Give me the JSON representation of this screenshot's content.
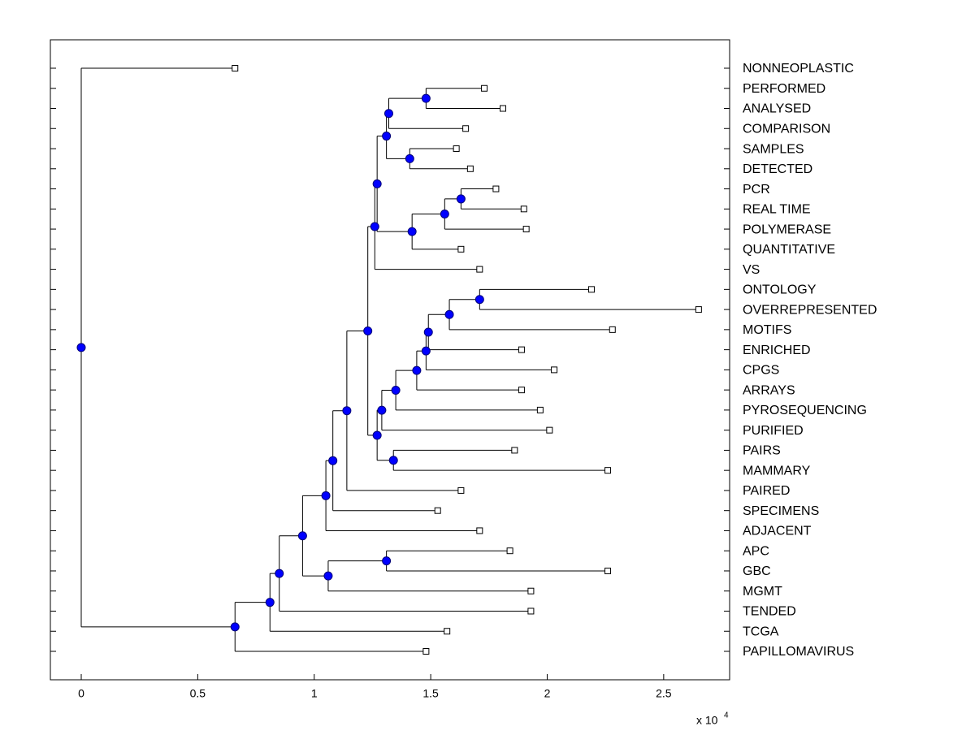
{
  "chart_data": {
    "type": "dendrogram",
    "labels": [
      "NONNEOPLASTIC",
      "PERFORMED",
      "ANALYSED",
      "COMPARISON",
      "SAMPLES",
      "DETECTED",
      "PCR",
      "REAL TIME",
      "POLYMERASE",
      "QUANTITATIVE",
      "VS",
      "ONTOLOGY",
      "OVERREPRESENTED",
      "MOTIFS",
      "ENRICHED",
      "CPGS",
      "ARRAYS",
      "PYROSEQUENCING",
      "PURIFIED",
      "PAIRS",
      "MAMMARY",
      "PAIRED",
      "SPECIMENS",
      "ADJACENT",
      "APC",
      "GBC",
      "MGMT",
      "TENDED",
      "TCGA",
      "PAPILLOMAVIRUS"
    ],
    "leaf_values": [
      0.66,
      1.73,
      1.81,
      1.65,
      1.61,
      1.67,
      1.78,
      1.9,
      1.91,
      1.63,
      1.71,
      2.19,
      2.65,
      2.28,
      1.89,
      2.03,
      1.89,
      1.97,
      2.01,
      1.86,
      2.26,
      1.63,
      1.53,
      1.71,
      1.84,
      2.26,
      1.93,
      1.93,
      1.57,
      1.48
    ],
    "nodes": [
      {
        "children": [
          1,
          2
        ],
        "value": 1.48
      },
      {
        "children": [
          30,
          3
        ],
        "value": 1.32
      },
      {
        "children": [
          4,
          5
        ],
        "value": 1.41
      },
      {
        "children": [
          31,
          32
        ],
        "value": 1.31
      },
      {
        "children": [
          6,
          7
        ],
        "value": 1.63
      },
      {
        "children": [
          34,
          8
        ],
        "value": 1.56
      },
      {
        "children": [
          35,
          9
        ],
        "value": 1.42
      },
      {
        "children": [
          33,
          36
        ],
        "value": 1.27
      },
      {
        "children": [
          37,
          10
        ],
        "value": 1.26
      },
      {
        "children": [
          11,
          12
        ],
        "value": 1.71
      },
      {
        "children": [
          39,
          13
        ],
        "value": 1.58
      },
      {
        "children": [
          40,
          14
        ],
        "value": 1.49
      },
      {
        "children": [
          41,
          15
        ],
        "value": 1.48
      },
      {
        "children": [
          42,
          16
        ],
        "value": 1.44
      },
      {
        "children": [
          43,
          17
        ],
        "value": 1.35
      },
      {
        "children": [
          44,
          18
        ],
        "value": 1.29
      },
      {
        "children": [
          19,
          20
        ],
        "value": 1.34
      },
      {
        "children": [
          45,
          46
        ],
        "value": 1.27
      },
      {
        "children": [
          38,
          47
        ],
        "value": 1.23
      },
      {
        "children": [
          48,
          21
        ],
        "value": 1.14
      },
      {
        "children": [
          49,
          22
        ],
        "value": 1.08
      },
      {
        "children": [
          50,
          23
        ],
        "value": 1.05
      },
      {
        "children": [
          24,
          25
        ],
        "value": 1.31
      },
      {
        "children": [
          52,
          26
        ],
        "value": 1.06
      },
      {
        "children": [
          51,
          53
        ],
        "value": 0.95
      },
      {
        "children": [
          54,
          27
        ],
        "value": 0.85
      },
      {
        "children": [
          55,
          28
        ],
        "value": 0.81
      },
      {
        "children": [
          56,
          29
        ],
        "value": 0.66
      },
      {
        "children": [
          0,
          57
        ],
        "value": 0
      }
    ],
    "xlim": [
      -0.1325,
      2.783
    ],
    "xticks": [
      0,
      0.5,
      1,
      1.5,
      2,
      2.5
    ],
    "x_scale_label": "x 10",
    "x_scale_exponent": "4",
    "node_color": "#0000ff",
    "leaf_color": "#ffffff"
  }
}
